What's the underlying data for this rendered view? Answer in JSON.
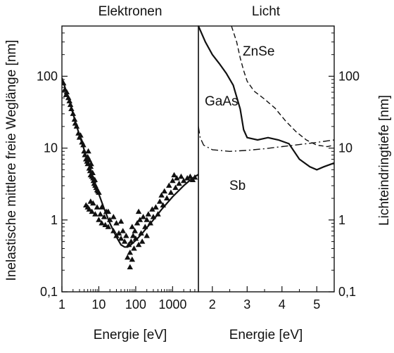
{
  "chart_data": [
    {
      "type": "scatter",
      "title": "Elektronen",
      "xlabel": "Energie [eV]",
      "ylabel": "Inelastische mittlere freie Weglänge [nm]",
      "xscale": "log",
      "yscale": "log",
      "xlim": [
        1,
        5000
      ],
      "ylim": [
        0.1,
        500
      ],
      "x_tick_labels": [
        "1",
        "10",
        "100",
        "1000"
      ],
      "x_tick_values": [
        1,
        10,
        100,
        1000
      ],
      "y_tick_labels": [
        "0,1",
        "1",
        "10",
        "100"
      ],
      "y_tick_values": [
        0.1,
        1,
        10,
        100
      ],
      "series": [
        {
          "kind": "points",
          "marker": "triangle",
          "points": [
            [
              1.1,
              80
            ],
            [
              1.2,
              65
            ],
            [
              1.3,
              55
            ],
            [
              1.35,
              60
            ],
            [
              1.5,
              50
            ],
            [
              1.6,
              45
            ],
            [
              1.7,
              40
            ],
            [
              1.8,
              35
            ],
            [
              2.0,
              30
            ],
            [
              2.2,
              25
            ],
            [
              2.3,
              22
            ],
            [
              2.5,
              20
            ],
            [
              2.8,
              16
            ],
            [
              3.0,
              14
            ],
            [
              3.2,
              15
            ],
            [
              3.5,
              12
            ],
            [
              3.8,
              11
            ],
            [
              4.0,
              9
            ],
            [
              4.2,
              8
            ],
            [
              4.5,
              7
            ],
            [
              4.8,
              6.5
            ],
            [
              5.0,
              6
            ],
            [
              5.0,
              7.5
            ],
            [
              5.2,
              9
            ],
            [
              5.5,
              5.2
            ],
            [
              5.5,
              6.8
            ],
            [
              5.8,
              4.8
            ],
            [
              6.0,
              5.5
            ],
            [
              6.0,
              4.2
            ],
            [
              6.2,
              6
            ],
            [
              6.5,
              4.0
            ],
            [
              6.8,
              4.5
            ],
            [
              7.0,
              3.8
            ],
            [
              7.2,
              3.5
            ],
            [
              7.5,
              3.2
            ],
            [
              7.8,
              3.6
            ],
            [
              8.0,
              3.0
            ],
            [
              8.5,
              2.8
            ],
            [
              9.0,
              2.6
            ],
            [
              9.5,
              2.5
            ],
            [
              10.0,
              2.4
            ],
            [
              4.5,
              1.6
            ],
            [
              5.0,
              1.5
            ],
            [
              5.5,
              1.4
            ],
            [
              6.0,
              1.8
            ],
            [
              6.5,
              1.3
            ],
            [
              7.0,
              1.7
            ],
            [
              8.0,
              1.2
            ],
            [
              9.0,
              1.5
            ],
            [
              10,
              1.0
            ],
            [
              11,
              1.2
            ],
            [
              12,
              0.9
            ],
            [
              14,
              1.1
            ],
            [
              15,
              0.85
            ],
            [
              16,
              1.3
            ],
            [
              18,
              0.8
            ],
            [
              20,
              1.0
            ],
            [
              25,
              0.7
            ],
            [
              30,
              0.6
            ],
            [
              35,
              0.65
            ],
            [
              40,
              0.55
            ],
            [
              45,
              0.7
            ],
            [
              50,
              0.5
            ],
            [
              55,
              0.6
            ],
            [
              60,
              0.3
            ],
            [
              65,
              0.45
            ],
            [
              70,
              0.35
            ],
            [
              70,
              0.22
            ],
            [
              75,
              0.5
            ],
            [
              80,
              0.8
            ],
            [
              80,
              0.28
            ],
            [
              85,
              0.6
            ],
            [
              90,
              0.4
            ],
            [
              95,
              0.7
            ],
            [
              100,
              0.55
            ],
            [
              110,
              0.9
            ],
            [
              120,
              0.45
            ],
            [
              130,
              1.0
            ],
            [
              140,
              0.65
            ],
            [
              150,
              0.5
            ],
            [
              160,
              1.1
            ],
            [
              180,
              0.8
            ],
            [
              200,
              0.6
            ],
            [
              220,
              1.2
            ],
            [
              250,
              0.9
            ],
            [
              280,
              1.4
            ],
            [
              300,
              1.1
            ],
            [
              350,
              1.5
            ],
            [
              400,
              1.2
            ],
            [
              450,
              1.8
            ],
            [
              500,
              2.2
            ],
            [
              550,
              1.6
            ],
            [
              600,
              2.5
            ],
            [
              700,
              2.0
            ],
            [
              800,
              3.0
            ],
            [
              900,
              2.4
            ],
            [
              1000,
              3.5
            ],
            [
              1100,
              4.2
            ],
            [
              1200,
              2.8
            ],
            [
              1300,
              3.8
            ],
            [
              1500,
              3.2
            ],
            [
              1700,
              4.0
            ],
            [
              2000,
              3.5
            ],
            [
              2500,
              3.8
            ],
            [
              3000,
              4.0
            ],
            [
              3500,
              3.6
            ],
            [
              4000,
              3.9
            ],
            [
              120,
              1.3
            ],
            [
              200,
              1.0
            ],
            [
              40,
              0.95
            ],
            [
              30,
              0.9
            ],
            [
              25,
              1.1
            ],
            [
              18,
              1.3
            ],
            [
              12,
              1.5
            ]
          ]
        },
        {
          "kind": "line",
          "style": "solid",
          "points": [
            [
              1.0,
              95
            ],
            [
              1.5,
              50
            ],
            [
              2.0,
              30
            ],
            [
              3.0,
              15
            ],
            [
              4.0,
              9.5
            ],
            [
              5.0,
              6.5
            ],
            [
              7.0,
              3.8
            ],
            [
              10,
              2.3
            ],
            [
              15,
              1.3
            ],
            [
              20,
              0.9
            ],
            [
              30,
              0.58
            ],
            [
              40,
              0.45
            ],
            [
              50,
              0.42
            ],
            [
              60,
              0.42
            ],
            [
              70,
              0.44
            ],
            [
              100,
              0.52
            ],
            [
              150,
              0.65
            ],
            [
              200,
              0.78
            ],
            [
              300,
              1.0
            ],
            [
              500,
              1.4
            ],
            [
              1000,
              2.1
            ],
            [
              2000,
              3.0
            ],
            [
              3000,
              3.6
            ],
            [
              4000,
              4.0
            ],
            [
              5000,
              4.3
            ]
          ]
        }
      ]
    },
    {
      "type": "line",
      "title": "Licht",
      "xlabel": "Energie [eV]",
      "ylabel": "Lichteindringtiefe [nm]",
      "xscale": "linear",
      "yscale": "log",
      "xlim": [
        1.6,
        5.5
      ],
      "ylim": [
        0.1,
        500
      ],
      "x_tick_labels": [
        "2",
        "3",
        "4",
        "5"
      ],
      "x_tick_values": [
        2,
        3,
        4,
        5
      ],
      "y_tick_labels": [
        "0,1",
        "1",
        "10",
        "100"
      ],
      "y_tick_values": [
        0.1,
        1,
        10,
        100
      ],
      "series": [
        {
          "name": "ZnSe",
          "style": "dashed",
          "points": [
            [
              2.55,
              500
            ],
            [
              2.7,
              300
            ],
            [
              2.8,
              180
            ],
            [
              2.9,
              120
            ],
            [
              3.0,
              85
            ],
            [
              3.2,
              62
            ],
            [
              3.5,
              48
            ],
            [
              3.8,
              36
            ],
            [
              4.1,
              24
            ],
            [
              4.4,
              17
            ],
            [
              4.7,
              13
            ],
            [
              5.0,
              11
            ],
            [
              5.3,
              10.5
            ],
            [
              5.5,
              11
            ]
          ]
        },
        {
          "name": "GaAs",
          "style": "solid",
          "points": [
            [
              1.6,
              500
            ],
            [
              1.8,
              300
            ],
            [
              2.0,
              200
            ],
            [
              2.2,
              150
            ],
            [
              2.4,
              110
            ],
            [
              2.6,
              75
            ],
            [
              2.8,
              35
            ],
            [
              2.9,
              18
            ],
            [
              3.0,
              14
            ],
            [
              3.3,
              13
            ],
            [
              3.6,
              14
            ],
            [
              3.9,
              13
            ],
            [
              4.2,
              11.5
            ],
            [
              4.5,
              7
            ],
            [
              4.8,
              5.5
            ],
            [
              5.0,
              5.0
            ],
            [
              5.2,
              5.5
            ],
            [
              5.5,
              6.2
            ]
          ]
        },
        {
          "name": "Sb",
          "style": "dash-dot",
          "points": [
            [
              1.6,
              20
            ],
            [
              1.65,
              14
            ],
            [
              1.75,
              11
            ],
            [
              2.0,
              9.5
            ],
            [
              2.5,
              9.0
            ],
            [
              3.0,
              9.3
            ],
            [
              3.5,
              9.8
            ],
            [
              4.0,
              10.5
            ],
            [
              4.5,
              11.2
            ],
            [
              5.0,
              12.0
            ],
            [
              5.5,
              13.0
            ]
          ]
        }
      ]
    }
  ]
}
